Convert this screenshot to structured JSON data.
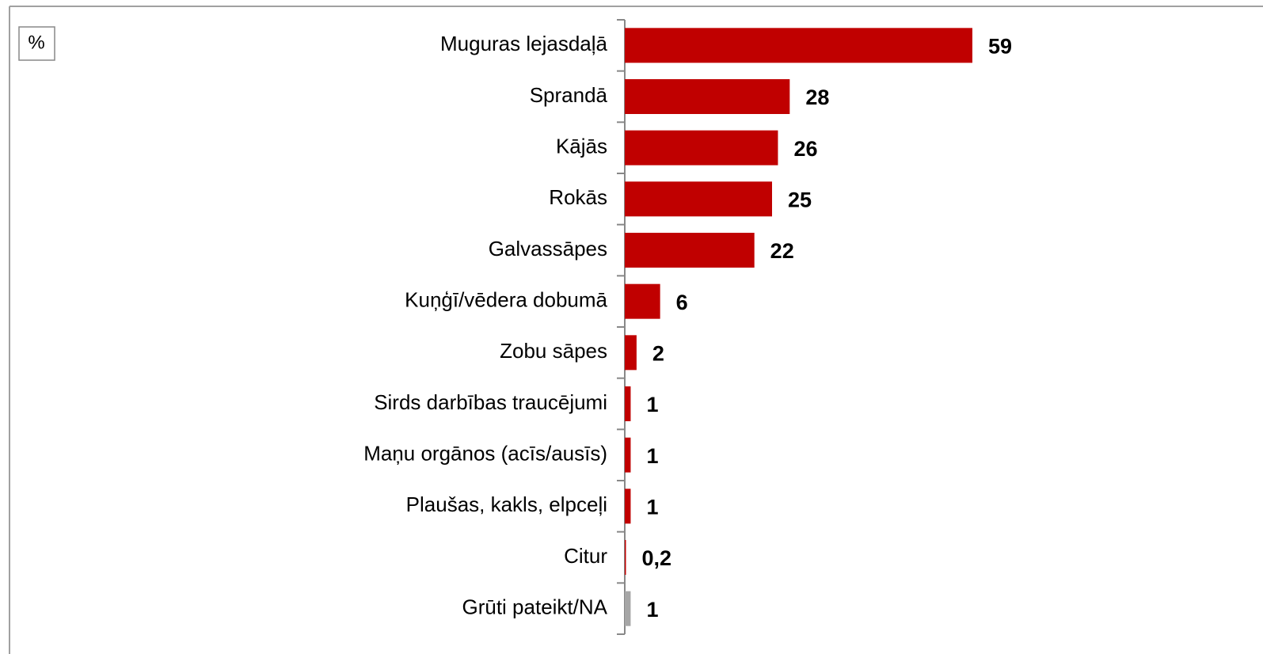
{
  "chart_data": {
    "type": "bar",
    "orientation": "horizontal",
    "unit_label": "%",
    "categories": [
      "Muguras lejasdaļā",
      "Sprandā",
      "Kājās",
      "Rokās",
      "Galvassāpes",
      "Kuņģī/vēdera dobumā",
      "Zobu sāpes",
      "Sirds darbības traucējumi",
      "Maņu orgānos (acīs/ausīs)",
      "Plaušas, kakls, elpceļi",
      "Citur",
      "Grūti pateikt/NA"
    ],
    "values": [
      59,
      28,
      26,
      25,
      22,
      6,
      2,
      1,
      1,
      1,
      0.2,
      1
    ],
    "value_labels": [
      "59",
      "28",
      "26",
      "25",
      "22",
      "6",
      "2",
      "1",
      "1",
      "1",
      "0,2",
      "1"
    ],
    "colors": [
      "#c00000",
      "#c00000",
      "#c00000",
      "#c00000",
      "#c00000",
      "#c00000",
      "#c00000",
      "#c00000",
      "#c00000",
      "#c00000",
      "#c00000",
      "#a6a6a6"
    ],
    "xlim": [
      0,
      100
    ]
  }
}
